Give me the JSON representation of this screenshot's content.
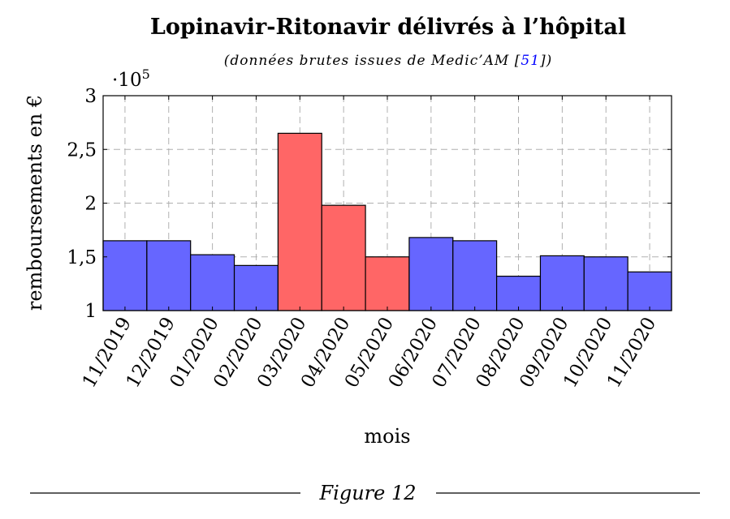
{
  "chart_data": {
    "type": "bar",
    "title": "Lopinavir-Ritonavir délivrés à l’hôpital",
    "subtitle_prefix": "(données brutes issues de Medic’AM [",
    "subtitle_ref": "51",
    "subtitle_suffix": "])",
    "xlabel": "mois",
    "ylabel": "remboursements en €",
    "y_multiplier": "·10",
    "y_multiplier_exp": "5",
    "ylim": [
      1,
      3
    ],
    "yticks": [
      1,
      1.5,
      2,
      2.5,
      3
    ],
    "ytick_labels": [
      "1",
      "1,5",
      "2",
      "2,5",
      "3"
    ],
    "grid": true,
    "categories": [
      "11/2019",
      "12/2019",
      "01/2020",
      "02/2020",
      "03/2020",
      "04/2020",
      "05/2020",
      "06/2020",
      "07/2020",
      "08/2020",
      "09/2020",
      "10/2020",
      "11/2020"
    ],
    "values": [
      1.65,
      1.65,
      1.52,
      1.42,
      2.65,
      1.98,
      1.5,
      1.68,
      1.65,
      1.32,
      1.51,
      1.5,
      1.36
    ],
    "highlight": [
      false,
      false,
      false,
      false,
      true,
      true,
      true,
      false,
      false,
      false,
      false,
      false,
      false
    ],
    "colors": {
      "normal": "#6666ff",
      "highlight": "#ff6666",
      "ref_link": "#0000ff"
    }
  },
  "figure_caption": "Figure 12"
}
